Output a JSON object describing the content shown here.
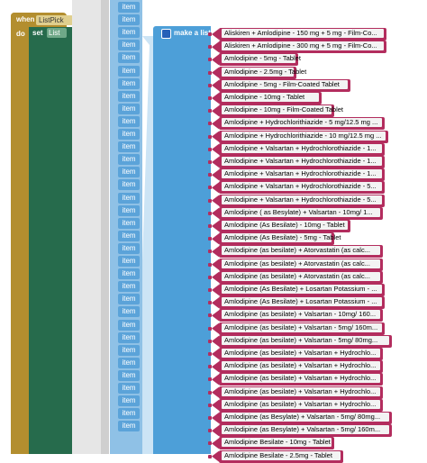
{
  "event": {
    "when_label": "when",
    "component": "ListPick",
    "do_label": "do"
  },
  "setter": {
    "set_label": "set",
    "target": "List"
  },
  "list_block": {
    "label": "make a list"
  },
  "item_label": "item",
  "items": [
    "Aliskiren + Amlodipine - 150 mg + 5 mg - Film-Co...",
    "Aliskiren + Amlodipine - 300 mg + 5 mg - Film-Co...",
    "Amlodipine - 5mg - Tablet",
    "Amlodipine - 2.5mg - Tablet",
    "Amlodipine - 5mg - Film-Coated Tablet",
    "Amlodipine - 10mg - Tablet",
    "Amlodipine - 10mg - Film-Coated Tablet",
    "Amlodipine + Hydrochlorithiazide - 5 mg/12.5 mg ...",
    "Amlodipine + Hydrochlorithiazide - 10 mg/12.5 mg ...",
    "Amlodipine + Valsartan + Hydrochlorothiazide - 1...",
    "Amlodipine + Valsartan + Hydrochlorothiazide - 1...",
    "Amlodipine + Valsartan + Hydrochlorothiazide - 1...",
    "Amlodipine + Valsartan + Hydrochlorothiazide - 5...",
    "Amlodipine + Valsartan + Hydrochlorothiazide - 5...",
    "Amlodipine ( as Besylate) + Valsartan - 10mg/ 1...",
    "Amlodipine (As Besilate) - 10mg - Tablet",
    "Amlodipine (As Besilate) - 5mg - Tablet",
    "Amlodipine (as besilate) + Atorvastatin (as calc...",
    "Amlodipine (as besilate) + Atorvastatin (as calc...",
    "Amlodipine (as besilate) + Atorvastatin (as calc...",
    "Amlodipine (As Besilate) + Losartan Potassium - ...",
    "Amlodipine (As Besilate) + Losartan Potassium - ...",
    "Amlodipine (as besilate) + Valsartan - 10mg/ 160...",
    "Amlodipine (as besilate) + Valsartan - 5mg/ 160m...",
    "Amlodipine (as besilate) + Valsartan - 5mg/ 80mg...",
    "Amlodipine (as besilate) + Valsartan + Hydrochlo...",
    "Amlodipine (as besilate) + Valsartan + Hydrochlo...",
    "Amlodipine (as besilate) + Valsartan + Hydrochlo...",
    "Amlodipine (as besilate) + Valsartan + Hydrochlo...",
    "Amlodipine (as besilate) + Valsartan + Hydrochlo...",
    "Amlodipine (as Besylate) + Valsartan - 5mg/ 80mg...",
    "Amlodipine (as Besylate) + Valsartan - 5mg/ 160m...",
    "Amlodipine Besilate - 10mg - Tablet",
    "Amlodipine Besilate - 2.5mg - Tablet"
  ],
  "colors": {
    "event": "#b38e2f",
    "setter": "#266b4c",
    "list": "#4d9fd8",
    "text_block": "#b32d5e"
  }
}
